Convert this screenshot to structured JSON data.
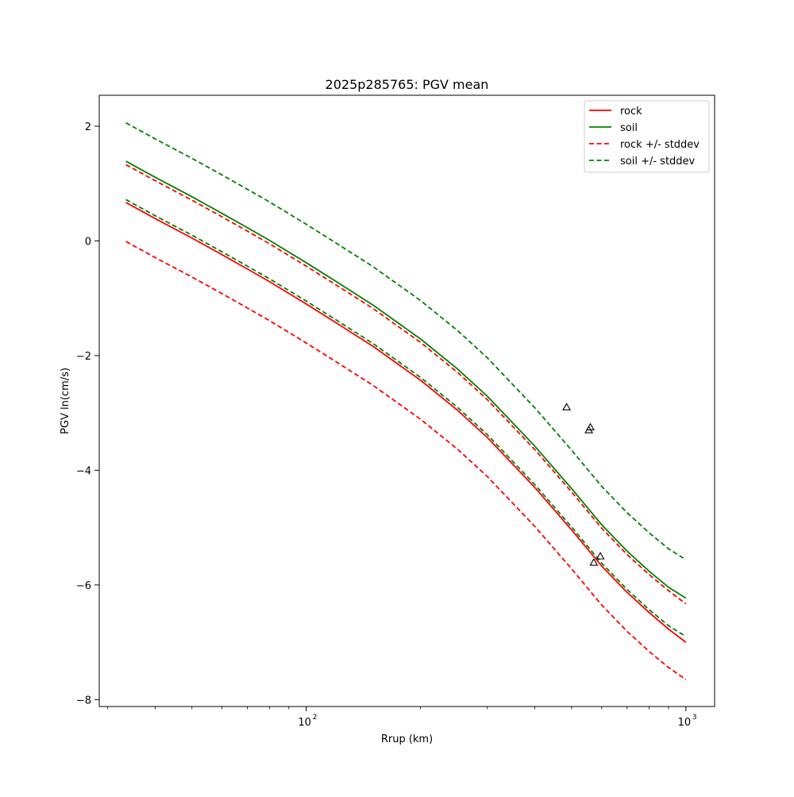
{
  "chart_data": {
    "type": "line",
    "title": "2025p285765: PGV mean",
    "xlabel": "Rrup (km)",
    "ylabel": "PGV ln(cm/s)",
    "xscale": "log",
    "xlim": [
      28.5,
      1190
    ],
    "ylim": [
      -8.12,
      2.54
    ],
    "x_ticks": [
      {
        "value": 100,
        "base": "10",
        "exp": "2"
      },
      {
        "value": 1000,
        "base": "10",
        "exp": "3"
      }
    ],
    "y_ticks": [
      {
        "value": 2,
        "label": "2"
      },
      {
        "value": 0,
        "label": "0"
      },
      {
        "value": -2,
        "label": "−2"
      },
      {
        "value": -4,
        "label": "−4"
      },
      {
        "value": -6,
        "label": "−6"
      },
      {
        "value": -8,
        "label": "−8"
      }
    ],
    "grid": false,
    "legend_position": "top-right",
    "x": [
      33.5,
      40,
      50,
      60,
      70,
      80,
      100,
      120,
      150,
      200,
      250,
      300,
      400,
      500,
      600,
      700,
      800,
      900,
      1000
    ],
    "series": [
      {
        "name": "rock",
        "color": "#ff0000",
        "dash": "solid",
        "values": [
          0.67,
          0.39,
          0.05,
          -0.24,
          -0.49,
          -0.71,
          -1.1,
          -1.43,
          -1.84,
          -2.43,
          -2.95,
          -3.43,
          -4.3,
          -5.04,
          -5.67,
          -6.13,
          -6.48,
          -6.77,
          -7.0
        ]
      },
      {
        "name": "soil",
        "color": "#008000",
        "dash": "solid",
        "values": [
          1.39,
          1.11,
          0.77,
          0.48,
          0.23,
          0.01,
          -0.38,
          -0.71,
          -1.12,
          -1.71,
          -2.23,
          -2.71,
          -3.58,
          -4.32,
          -4.95,
          -5.41,
          -5.76,
          -6.04,
          -6.23
        ]
      },
      {
        "name": "rock +/- stddev",
        "color": "#ff0000",
        "dash": "dashed",
        "values": [
          1.33,
          1.05,
          0.71,
          0.42,
          0.17,
          -0.05,
          -0.44,
          -0.77,
          -1.18,
          -1.77,
          -2.29,
          -2.77,
          -3.64,
          -4.38,
          -5.01,
          -5.47,
          -5.82,
          -6.1,
          -6.33
        ]
      },
      {
        "name": "rock +/- stddev",
        "color": "#ff0000",
        "dash": "dashed",
        "legend": false,
        "values": [
          -0.01,
          -0.29,
          -0.63,
          -0.92,
          -1.17,
          -1.39,
          -1.78,
          -2.11,
          -2.52,
          -3.11,
          -3.63,
          -4.11,
          -4.98,
          -5.72,
          -6.35,
          -6.81,
          -7.16,
          -7.44,
          -7.65
        ]
      },
      {
        "name": "soil +/- stddev",
        "color": "#008000",
        "dash": "dashed",
        "values": [
          2.06,
          1.78,
          1.44,
          1.15,
          0.9,
          0.68,
          0.29,
          -0.04,
          -0.45,
          -1.04,
          -1.56,
          -2.04,
          -2.91,
          -3.65,
          -4.28,
          -4.74,
          -5.09,
          -5.37,
          -5.56
        ]
      },
      {
        "name": "soil +/- stddev",
        "color": "#008000",
        "dash": "dashed",
        "legend": false,
        "values": [
          0.72,
          0.44,
          0.1,
          -0.19,
          -0.44,
          -0.66,
          -1.05,
          -1.38,
          -1.79,
          -2.38,
          -2.9,
          -3.38,
          -4.25,
          -4.99,
          -5.62,
          -6.08,
          -6.43,
          -6.71,
          -6.9
        ]
      }
    ],
    "observations": {
      "marker": "triangle",
      "points": [
        {
          "x": 485,
          "y": -2.9
        },
        {
          "x": 560,
          "y": -3.25
        },
        {
          "x": 555,
          "y": -3.3
        },
        {
          "x": 595,
          "y": -5.5
        },
        {
          "x": 572,
          "y": -5.61
        }
      ]
    }
  }
}
